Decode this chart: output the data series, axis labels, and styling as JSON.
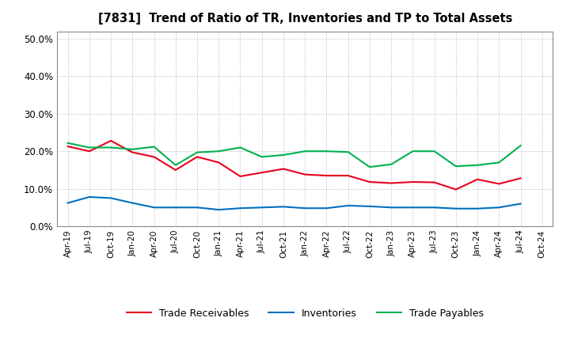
{
  "title": "[7831]  Trend of Ratio of TR, Inventories and TP to Total Assets",
  "labels": [
    "Apr-19",
    "Jul-19",
    "Oct-19",
    "Jan-20",
    "Apr-20",
    "Jul-20",
    "Oct-20",
    "Jan-21",
    "Apr-21",
    "Jul-21",
    "Oct-21",
    "Jan-22",
    "Apr-22",
    "Jul-22",
    "Oct-22",
    "Jan-23",
    "Apr-23",
    "Jul-23",
    "Oct-23",
    "Jan-24",
    "Apr-24",
    "Jul-24",
    "Oct-24"
  ],
  "trade_receivables": [
    0.213,
    0.2,
    0.228,
    0.197,
    0.185,
    0.15,
    0.185,
    0.17,
    0.133,
    0.143,
    0.153,
    0.138,
    0.135,
    0.135,
    0.118,
    0.115,
    0.118,
    0.117,
    0.098,
    0.125,
    0.113,
    0.128,
    null
  ],
  "inventories": [
    0.062,
    0.078,
    0.075,
    0.062,
    0.05,
    0.05,
    0.05,
    0.044,
    0.048,
    0.05,
    0.052,
    0.048,
    0.048,
    0.055,
    0.053,
    0.05,
    0.05,
    0.05,
    0.047,
    0.047,
    0.05,
    0.06,
    null
  ],
  "trade_payables": [
    0.222,
    0.21,
    0.21,
    0.205,
    0.212,
    0.163,
    0.197,
    0.2,
    0.21,
    0.185,
    0.19,
    0.2,
    0.2,
    0.198,
    0.158,
    0.165,
    0.2,
    0.2,
    0.16,
    0.163,
    0.17,
    0.215,
    null
  ],
  "tr_color": "#e8001c",
  "inv_color": "#0070c0",
  "tp_color": "#00b050",
  "bg_color": "#ffffff",
  "grid_color": "#aaaaaa",
  "ylim": [
    0.0,
    0.52
  ],
  "yticks": [
    0.0,
    0.1,
    0.2,
    0.3,
    0.4,
    0.5
  ],
  "legend_labels": [
    "Trade Receivables",
    "Inventories",
    "Trade Payables"
  ]
}
